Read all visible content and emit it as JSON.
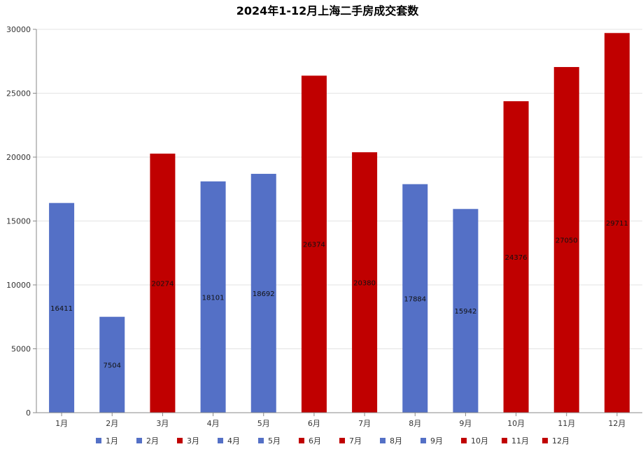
{
  "chart_data": {
    "type": "bar",
    "title": "2024年1-12月上海二手房成交套数",
    "categories": [
      "1月",
      "2月",
      "3月",
      "4月",
      "5月",
      "6月",
      "7月",
      "8月",
      "9月",
      "10月",
      "11月",
      "12月"
    ],
    "values": [
      16411,
      7504,
      20274,
      18101,
      18692,
      26374,
      20380,
      17884,
      15942,
      24376,
      27050,
      29711
    ],
    "data_labels": [
      "16411",
      "7504",
      "20274",
      "18101",
      "18692",
      "26374",
      "20380",
      "17884",
      "15942",
      "24376",
      "27050",
      "29711"
    ],
    "colors": [
      "#5470c6",
      "#5470c6",
      "#c00000",
      "#5470c6",
      "#5470c6",
      "#c00000",
      "#c00000",
      "#5470c6",
      "#5470c6",
      "#c00000",
      "#c00000",
      "#c00000"
    ],
    "ylim": [
      0,
      30000
    ],
    "yticks": [
      "0",
      "5000",
      "10000",
      "15000",
      "20000",
      "25000",
      "30000"
    ],
    "grid": true,
    "legend": "bottom",
    "xlabel": "",
    "ylabel": ""
  }
}
